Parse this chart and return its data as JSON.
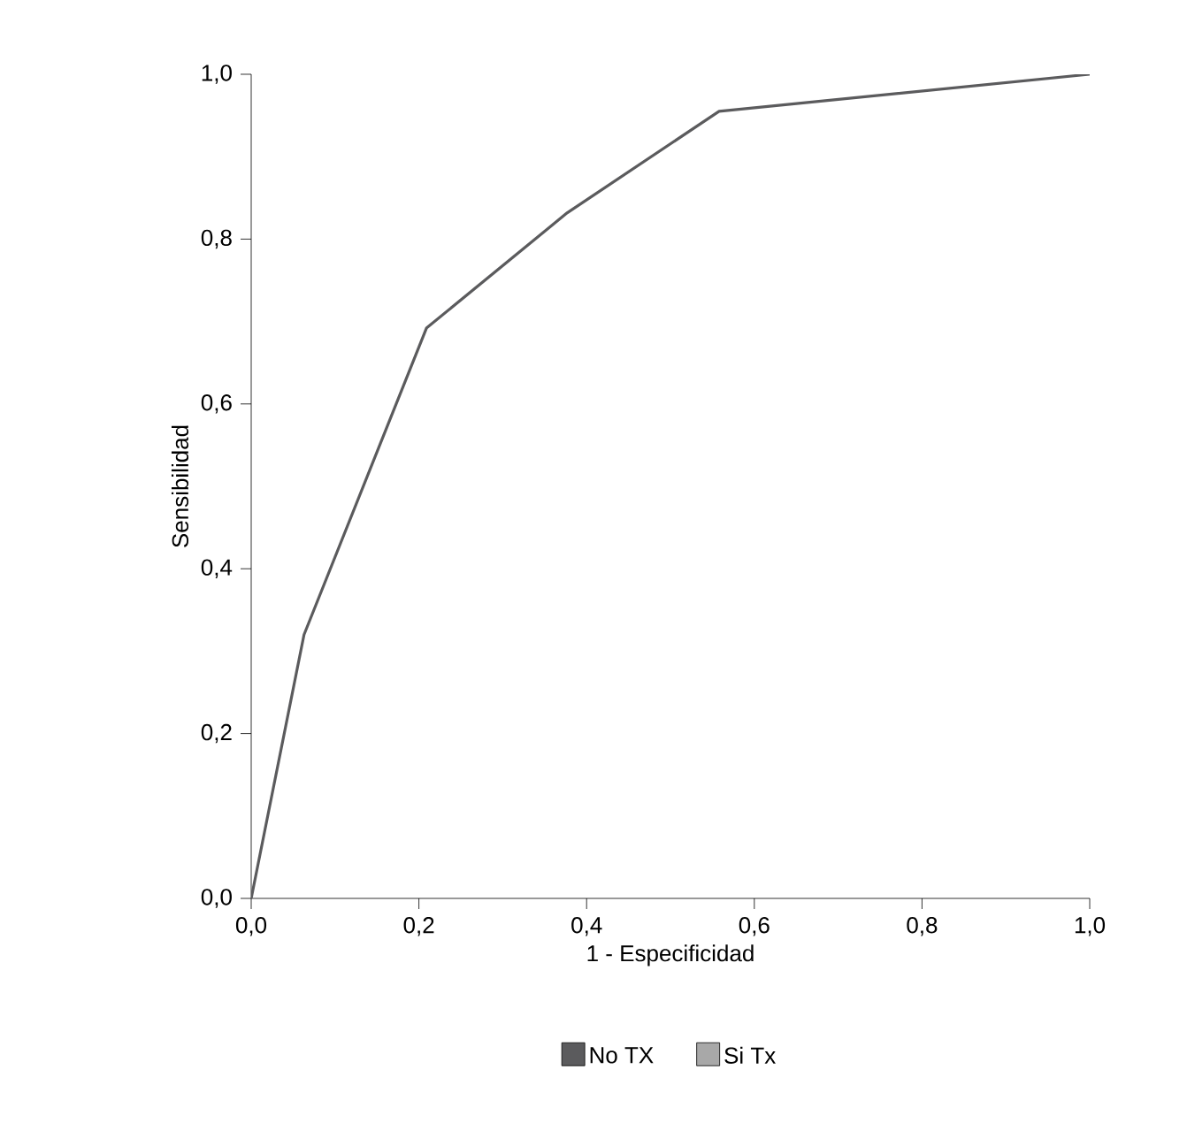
{
  "chart_data": {
    "type": "line",
    "xlabel": "1 - Especificidad",
    "ylabel": "Sensibilidad",
    "x": [
      0,
      0.063,
      0.209,
      0.377,
      0.558,
      1.0
    ],
    "series": [
      {
        "name": "No TX",
        "color": "#5b5b5d",
        "values": [
          0,
          0.32,
          0.692,
          0.832,
          0.955,
          1.0
        ]
      },
      {
        "name": "Si Tx",
        "color": "#a8a8a8",
        "values": [
          null,
          null,
          null,
          null,
          null,
          null
        ]
      }
    ],
    "xlim": [
      0,
      1
    ],
    "ylim": [
      0,
      1
    ],
    "xticks": [
      {
        "value": 0,
        "label": "0,0"
      },
      {
        "value": 0.2,
        "label": "0,2"
      },
      {
        "value": 0.4,
        "label": "0,4"
      },
      {
        "value": 0.6,
        "label": "0,6"
      },
      {
        "value": 0.8,
        "label": "0,8"
      },
      {
        "value": 1,
        "label": "1,0"
      }
    ],
    "yticks": [
      {
        "value": 0,
        "label": "0,0"
      },
      {
        "value": 0.2,
        "label": "0,2"
      },
      {
        "value": 0.4,
        "label": "0,4"
      },
      {
        "value": 0.6,
        "label": "0,6"
      },
      {
        "value": 0.8,
        "label": "0,8"
      },
      {
        "value": 1,
        "label": "1,0"
      }
    ],
    "grid": false,
    "legend": "bottom",
    "marker": "none",
    "line_style": "solid"
  }
}
